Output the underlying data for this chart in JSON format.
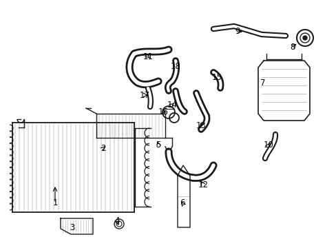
{
  "background_color": "#ffffff",
  "fig_width": 4.89,
  "fig_height": 3.6,
  "dpi": 100,
  "line_color": "#1a1a1a",
  "font_size": 8.5
}
